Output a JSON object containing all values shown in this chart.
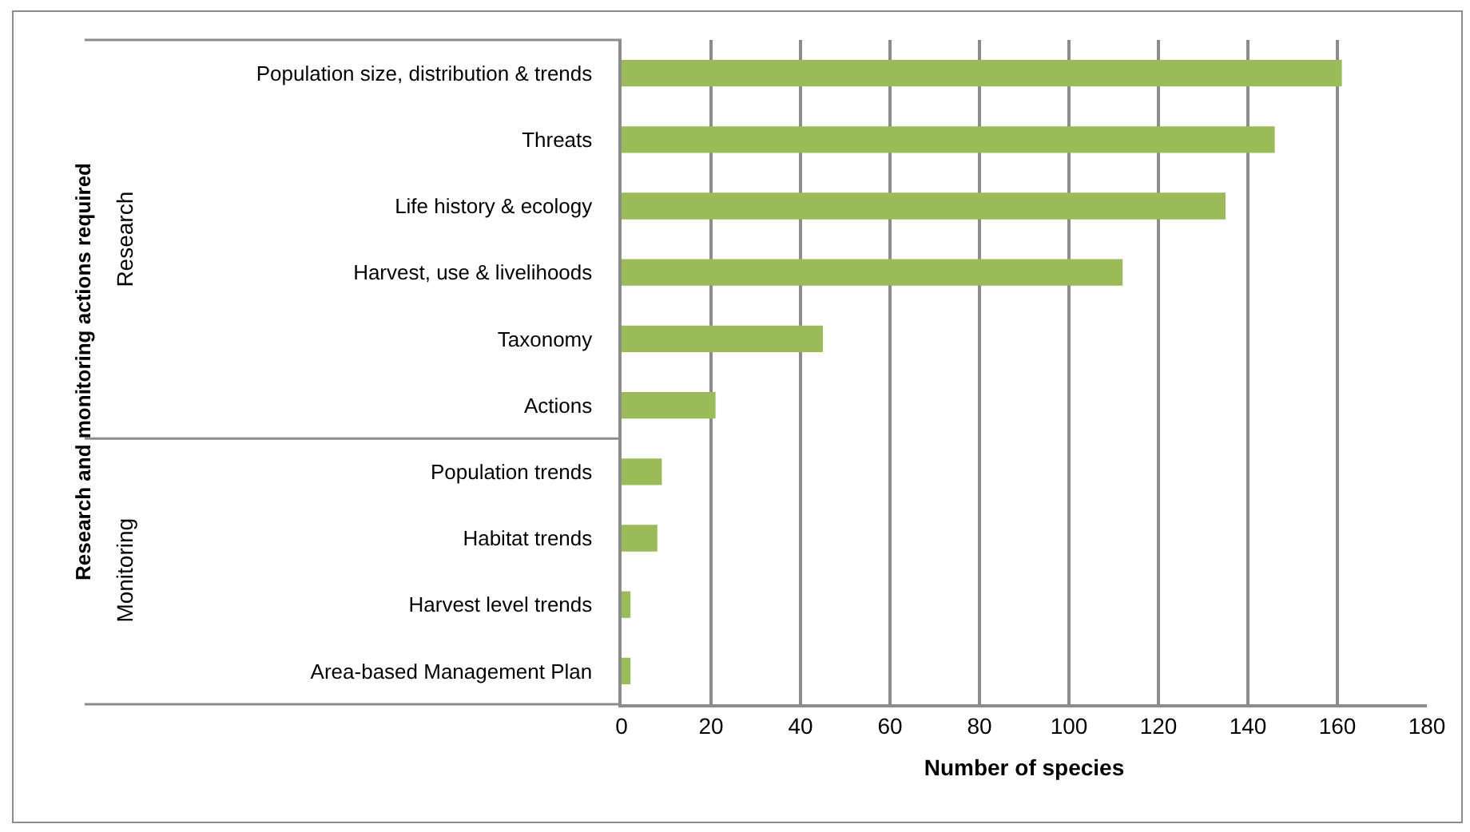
{
  "chart_data": {
    "type": "bar",
    "orientation": "horizontal",
    "xlabel": "Number of species",
    "categories": [
      "Population size, distribution & trends",
      "Threats",
      "Life history & ecology",
      "Harvest, use & livelihoods",
      "Taxonomy",
      "Actions",
      "Population trends",
      "Habitat trends",
      "Harvest level trends",
      "Area-based Management Plan"
    ],
    "values": [
      161,
      146,
      135,
      112,
      45,
      21,
      9,
      8,
      2,
      2
    ],
    "color": "#9bbb59",
    "xlim": [
      0,
      180
    ],
    "xticks": [
      0,
      20,
      40,
      60,
      80,
      100,
      120,
      140,
      160,
      180
    ],
    "grid": "x",
    "annotations": [
      "Research",
      "Monitoring",
      "Research and monitoring actions required"
    ]
  }
}
